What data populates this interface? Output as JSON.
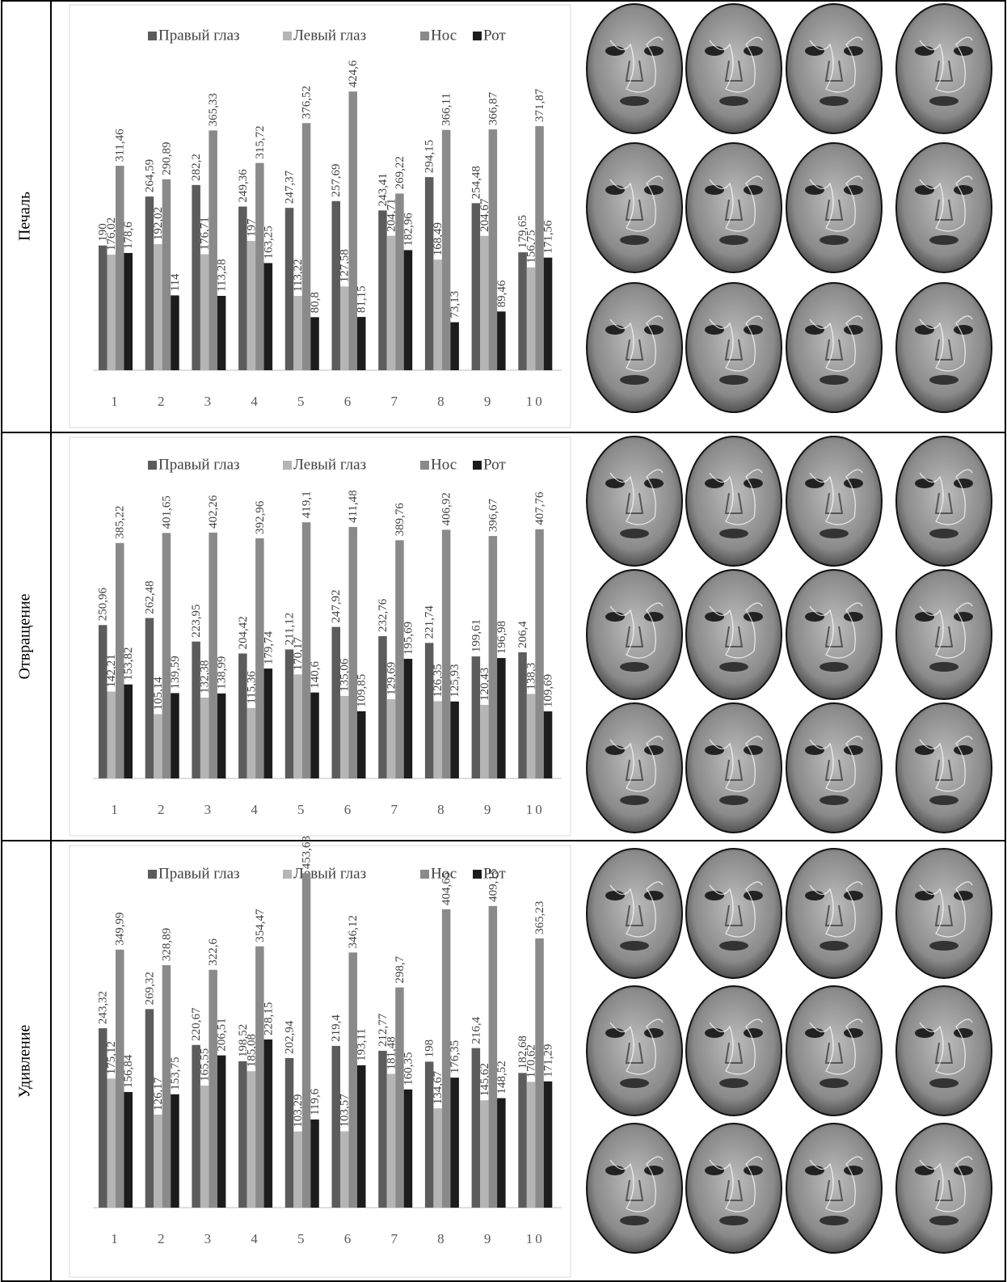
{
  "row_labels": [
    "Печаль",
    "Отвращение",
    "Удивление"
  ],
  "chart_data": [
    {
      "type": "bar",
      "categories": [
        "1",
        "2",
        "3",
        "4",
        "5",
        "6",
        "7",
        "8",
        "9",
        "10"
      ],
      "ylim": [
        0,
        500
      ],
      "grid": false,
      "legend": "top",
      "series": [
        {
          "name": "Правый глаз",
          "color": "#5c5c5c",
          "values": [
            190,
            264.59,
            282.2,
            249.36,
            247.37,
            257.69,
            243.41,
            294.15,
            254.48,
            179.65
          ],
          "value_labels": [
            "190",
            "264,59",
            "282,2",
            "249,36",
            "247,37",
            "257,69",
            "243,41",
            "294,15",
            "254,48",
            "179,65"
          ]
        },
        {
          "name": "Левый глаз",
          "color": "#b5b5b5",
          "values": [
            176.02,
            192.02,
            176.71,
            197,
            113.22,
            127.58,
            204.71,
            168.49,
            204.67,
            156.75
          ],
          "value_labels": [
            "176,02",
            "192,02",
            "176,71",
            "197",
            "113,22",
            "127,58",
            "204,71",
            "168,49",
            "204,67",
            "156,75"
          ]
        },
        {
          "name": "Нос",
          "color": "#8a8a8a",
          "values": [
            311.46,
            290.89,
            365.33,
            315.72,
            376.52,
            424.6,
            269.22,
            366.11,
            366.87,
            371.87
          ],
          "value_labels": [
            "311,46",
            "290,89",
            "365,33",
            "315,72",
            "376,52",
            "424,6",
            "269,22",
            "366,11",
            "366,87",
            "371,87"
          ]
        },
        {
          "name": "Рот",
          "color": "#1c1c1c",
          "values": [
            178.6,
            114,
            113.28,
            163.25,
            80.8,
            81.15,
            182.96,
            73.13,
            89.46,
            171.56
          ],
          "value_labels": [
            "178,6",
            "114",
            "113,28",
            "163,25",
            "80,8",
            "81,15",
            "182,96",
            "73,13",
            "89,46",
            "171,56"
          ]
        }
      ]
    },
    {
      "type": "bar",
      "categories": [
        "1",
        "2",
        "3",
        "4",
        "5",
        "6",
        "7",
        "8",
        "9",
        "10"
      ],
      "ylim": [
        0,
        500
      ],
      "grid": false,
      "legend": "top",
      "series": [
        {
          "name": "Правый глаз",
          "color": "#5c5c5c",
          "values": [
            250.96,
            262.48,
            223.95,
            204.42,
            211.12,
            247.92,
            232.76,
            221.74,
            199.61,
            206.4
          ],
          "value_labels": [
            "250,96",
            "262,48",
            "223,95",
            "204,42",
            "211,12",
            "247,92",
            "232,76",
            "221,74",
            "199,61",
            "206,4"
          ]
        },
        {
          "name": "Левый глаз",
          "color": "#b5b5b5",
          "values": [
            142.21,
            105.14,
            132.38,
            115.36,
            170.17,
            135.06,
            129.69,
            126.35,
            120.43,
            138.3
          ],
          "value_labels": [
            "142,21",
            "105,14",
            "132,38",
            "115,36",
            "170,17",
            "135,06",
            "129,69",
            "126,35",
            "120,43",
            "138,3"
          ]
        },
        {
          "name": "Нос",
          "color": "#8a8a8a",
          "values": [
            385.22,
            401.65,
            402.26,
            392.96,
            419.1,
            411.48,
            389.76,
            406.92,
            396.67,
            407.76
          ],
          "value_labels": [
            "385,22",
            "401,65",
            "402,26",
            "392,96",
            "419,1",
            "411,48",
            "389,76",
            "406,92",
            "396,67",
            "407,76"
          ]
        },
        {
          "name": "Рот",
          "color": "#1c1c1c",
          "values": [
            153.82,
            139.59,
            138.99,
            179.74,
            140.6,
            109.85,
            195.69,
            125.93,
            196.98,
            109.69
          ],
          "value_labels": [
            "153,82",
            "139,59",
            "138,99",
            "179,74",
            "140,6",
            "109,85",
            "195,69",
            "125,93",
            "196,98",
            "109,69"
          ]
        }
      ]
    },
    {
      "type": "bar",
      "categories": [
        "1",
        "2",
        "3",
        "4",
        "5",
        "6",
        "7",
        "8",
        "9",
        "10"
      ],
      "ylim": [
        0,
        500
      ],
      "grid": false,
      "legend": "top",
      "series": [
        {
          "name": "Правый глаз",
          "color": "#5c5c5c",
          "values": [
            243.32,
            269.32,
            220.67,
            198.52,
            202.94,
            219.4,
            212.77,
            198,
            216.4,
            182.68
          ],
          "value_labels": [
            "243,32",
            "269,32",
            "220,67",
            "198,52",
            "202,94",
            "219,4",
            "212,77",
            "198",
            "216,4",
            "182,68"
          ]
        },
        {
          "name": "Левый глаз",
          "color": "#b5b5b5",
          "values": [
            175.12,
            126.17,
            165.55,
            185.08,
            103.29,
            103.57,
            181.48,
            134.67,
            145.62,
            170.62
          ],
          "value_labels": [
            "175,12",
            "126,17",
            "165,55",
            "185,08",
            "103,29",
            "103,57",
            "181,48",
            "134,67",
            "145,62",
            "170,62"
          ]
        },
        {
          "name": "Нос",
          "color": "#8a8a8a",
          "values": [
            349.99,
            328.89,
            322.6,
            354.47,
            453.63,
            346.12,
            298.7,
            404.65,
            409.15,
            365.23
          ],
          "value_labels": [
            "349,99",
            "328,89",
            "322,6",
            "354,47",
            "453,63",
            "346,12",
            "298,7",
            "404,65",
            "409,15",
            "365,23"
          ]
        },
        {
          "name": "Рот",
          "color": "#1c1c1c",
          "values": [
            156.84,
            153.75,
            206.51,
            228.15,
            119.6,
            193.11,
            160.35,
            176.35,
            148.52,
            171.29
          ],
          "value_labels": [
            "156,84",
            "153,75",
            "206,51",
            "228,15",
            "119,6",
            "193,11",
            "160,35",
            "176,35",
            "148,52",
            "171,29"
          ]
        }
      ]
    }
  ]
}
